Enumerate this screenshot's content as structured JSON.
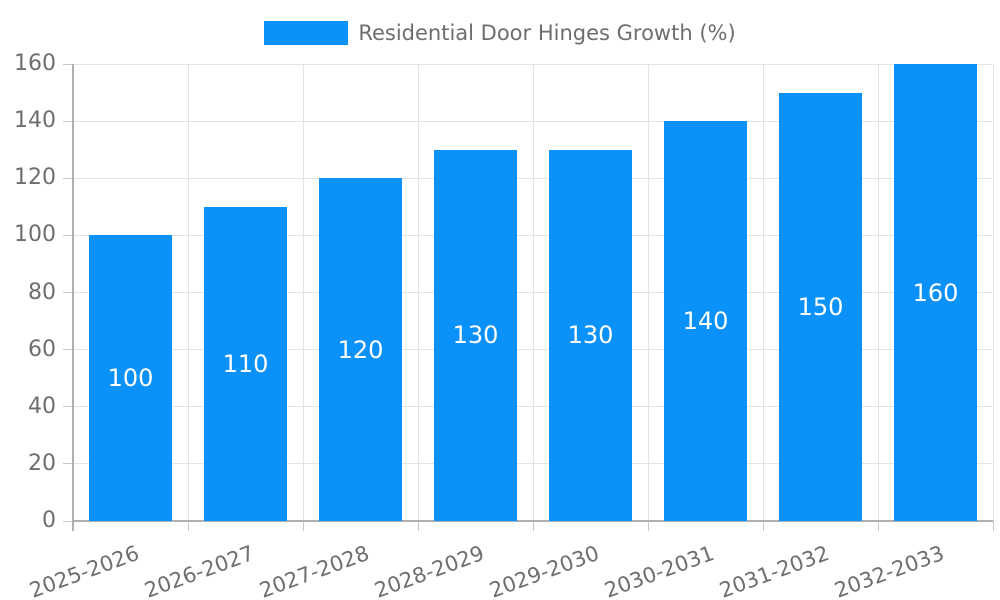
{
  "chart_data": {
    "type": "bar",
    "title": "",
    "legend": "Residential Door Hinges Growth (%)",
    "legend_position": "top-center",
    "categories": [
      "2025-2026",
      "2026-2027",
      "2027-2028",
      "2028-2029",
      "2029-2030",
      "2030-2031",
      "2031-2032",
      "2032-2033"
    ],
    "values": [
      100,
      110,
      120,
      130,
      130,
      140,
      150,
      160
    ],
    "xlabel": "",
    "ylabel": "",
    "ylim": [
      0,
      160
    ],
    "yticks": [
      0,
      20,
      40,
      60,
      80,
      100,
      120,
      140,
      160
    ],
    "grid": "on",
    "x_label_rotation_deg": -20,
    "colors": {
      "bar": "#0a91fa",
      "bar_value_label": "#ffffff",
      "axis_text": "#6e6e6e",
      "legend_text": "#6e6e6e",
      "gridline": "#e3e3e3",
      "tick_mark": "#c9c9c9",
      "axis_line": "#b0b0b0",
      "background": "#ffffff"
    }
  }
}
